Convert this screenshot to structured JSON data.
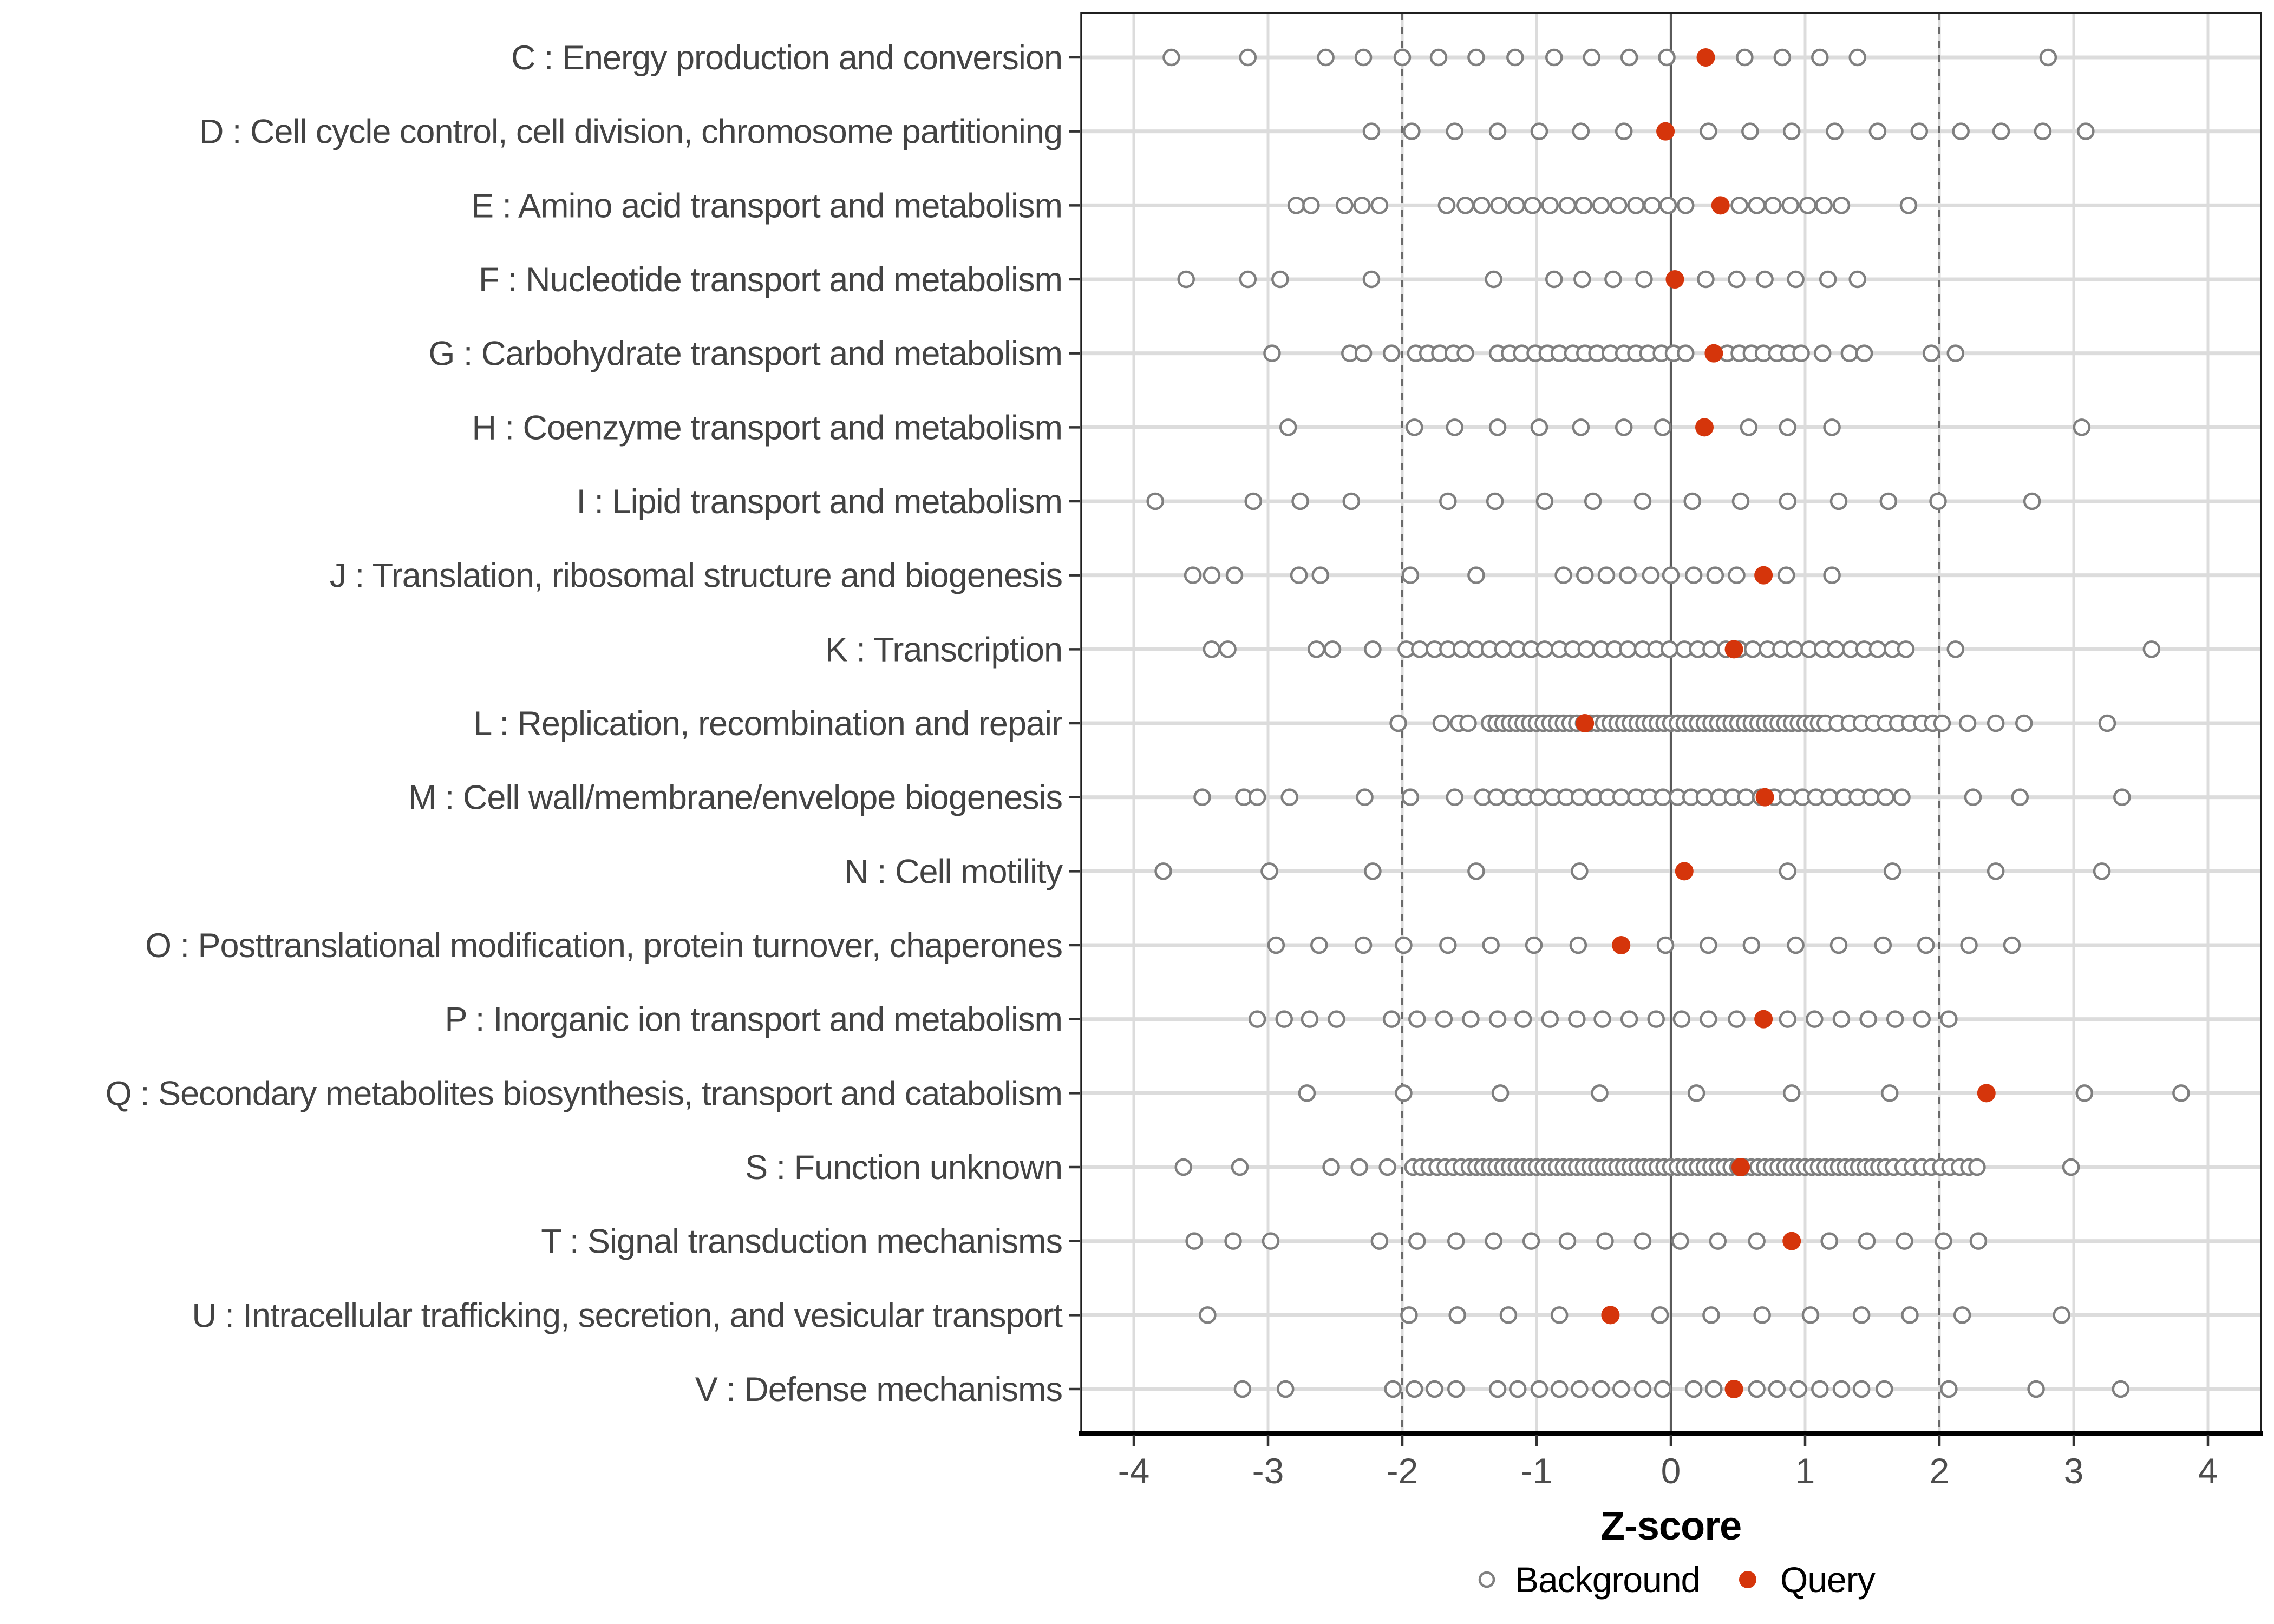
{
  "figure": {
    "background_color": "#FFFFFF"
  },
  "colors": {
    "query_point": "#D5350B",
    "background_point_stroke": "#7F7F7F",
    "background_point_fill": "#FFFFFF",
    "grid_line": "#DCDCDC",
    "row_band": "#DCDCDC",
    "dashed_reference_line": "#6A6A6A",
    "zero_line": "#5A5A5A",
    "panel_border": "#1F1F1F",
    "axis_line": "#000000",
    "tick_mark": "#333333",
    "tick_text": "#4D4D4D",
    "category_text": "#434343",
    "legend_text": "#000000"
  },
  "axis": {
    "x_label": "Z-score"
  },
  "legend": {
    "background_label": "Background",
    "query_label": "Query"
  },
  "chart_data": {
    "type": "scatter",
    "title": "",
    "xlabel": "Z-score",
    "ylabel": "",
    "xlim": [
      -4.4,
      4.4
    ],
    "x_ticks": [
      -4,
      -3,
      -2,
      -1,
      0,
      1,
      2,
      3,
      4
    ],
    "grid": "major vertical lines at integers; light horizontal band per category",
    "legend_position": "bottom",
    "legend_entries": [
      "Background",
      "Query"
    ],
    "reference_lines": {
      "solid_x": 0,
      "dashed_x": [
        -2,
        2
      ]
    },
    "rows": [
      {
        "label": "C : Energy production and conversion",
        "query": 0.26,
        "background": [
          -3.72,
          -3.15,
          -2.57,
          -2.29,
          -2.0,
          -1.73,
          -1.45,
          -1.16,
          -0.87,
          -0.59,
          -0.31,
          -0.03,
          0.55,
          0.83,
          1.11,
          1.39,
          2.81
        ]
      },
      {
        "label": "D : Cell cycle control, cell division, chromosome partitioning",
        "query": -0.04,
        "background": [
          -2.23,
          -1.93,
          -1.61,
          -1.29,
          -0.98,
          -0.67,
          -0.35,
          0.28,
          0.59,
          0.9,
          1.22,
          1.54,
          1.85,
          2.16,
          2.46,
          2.77,
          3.09
        ]
      },
      {
        "label": "E : Amino acid transport and metabolism",
        "query": 0.37,
        "background": [
          -2.79,
          -2.68,
          -2.43,
          -2.3,
          -2.17,
          -1.67,
          -1.53,
          -1.41,
          -1.28,
          -1.15,
          -1.03,
          -0.9,
          -0.77,
          -0.65,
          -0.52,
          -0.39,
          -0.26,
          -0.14,
          -0.02,
          0.11,
          0.51,
          0.64,
          0.76,
          0.89,
          1.02,
          1.14,
          1.27,
          1.77
        ]
      },
      {
        "label": "F : Nucleotide transport and metabolism",
        "query": 0.03,
        "background": [
          -3.61,
          -3.15,
          -2.91,
          -2.23,
          -1.32,
          -0.87,
          -0.66,
          -0.43,
          -0.2,
          0.26,
          0.49,
          0.7,
          0.93,
          1.17,
          1.39
        ]
      },
      {
        "label": "G : Carbohydrate transport and metabolism",
        "query": 0.32,
        "background": [
          -2.97,
          -2.39,
          -2.29,
          -2.08,
          -1.9,
          -1.81,
          -1.72,
          -1.62,
          -1.53,
          -1.29,
          -1.2,
          -1.11,
          -1.01,
          -0.92,
          -0.83,
          -0.73,
          -0.64,
          -0.55,
          -0.45,
          -0.35,
          -0.26,
          -0.17,
          -0.07,
          0.02,
          0.11,
          0.42,
          0.51,
          0.6,
          0.69,
          0.79,
          0.88,
          0.97,
          1.13,
          1.33,
          1.44,
          1.94,
          2.12
        ]
      },
      {
        "label": "H : Coenzyme transport and metabolism",
        "query": 0.25,
        "background": [
          -2.85,
          -1.91,
          -1.61,
          -1.29,
          -0.98,
          -0.67,
          -0.35,
          -0.06,
          0.58,
          0.87,
          1.2,
          3.06
        ]
      },
      {
        "label": "I : Lipid transport and metabolism",
        "query": null,
        "background": [
          -3.84,
          -3.11,
          -2.76,
          -2.38,
          -1.66,
          -1.31,
          -0.94,
          -0.58,
          -0.21,
          0.16,
          0.52,
          0.87,
          1.25,
          1.62,
          1.99,
          2.69
        ]
      },
      {
        "label": "J : Translation, ribosomal structure and biogenesis",
        "query": 0.69,
        "background": [
          -3.56,
          -3.42,
          -3.25,
          -2.77,
          -2.61,
          -1.94,
          -1.45,
          -0.8,
          -0.64,
          -0.48,
          -0.32,
          -0.15,
          0.0,
          0.17,
          0.33,
          0.49,
          0.86,
          1.2
        ]
      },
      {
        "label": "K : Transcription",
        "query": 0.47,
        "background": [
          -3.42,
          -3.3,
          -2.64,
          -2.52,
          -2.22,
          -1.97,
          -1.87,
          -1.76,
          -1.66,
          -1.56,
          -1.45,
          -1.35,
          -1.25,
          -1.14,
          -1.04,
          -0.94,
          -0.83,
          -0.73,
          -0.63,
          -0.52,
          -0.42,
          -0.32,
          -0.21,
          -0.11,
          -0.01,
          0.1,
          0.2,
          0.3,
          0.41,
          0.51,
          0.61,
          0.72,
          0.82,
          0.92,
          1.03,
          1.13,
          1.23,
          1.34,
          1.44,
          1.54,
          1.65,
          1.75,
          2.12,
          3.58
        ]
      },
      {
        "label": "L : Replication, recombination and repair",
        "query": -0.64,
        "background": [
          -2.03,
          -1.71,
          -1.58,
          -1.51,
          -1.35,
          -1.3,
          -1.25,
          -1.2,
          -1.15,
          -1.1,
          -1.05,
          -1.0,
          -0.95,
          -0.9,
          -0.85,
          -0.8,
          -0.75,
          -0.7,
          -0.65,
          -0.6,
          -0.55,
          -0.5,
          -0.45,
          -0.4,
          -0.35,
          -0.3,
          -0.25,
          -0.2,
          -0.15,
          -0.1,
          -0.05,
          0.0,
          0.05,
          0.1,
          0.15,
          0.2,
          0.25,
          0.3,
          0.35,
          0.4,
          0.45,
          0.5,
          0.55,
          0.6,
          0.65,
          0.7,
          0.75,
          0.8,
          0.85,
          0.9,
          0.95,
          1.0,
          1.05,
          1.1,
          1.15,
          1.24,
          1.33,
          1.42,
          1.51,
          1.6,
          1.69,
          1.78,
          1.87,
          1.95,
          2.02,
          2.21,
          2.42,
          2.63,
          3.25
        ]
      },
      {
        "label": "M : Cell wall/membrane/envelope biogenesis",
        "query": 0.7,
        "background": [
          -3.49,
          -3.18,
          -3.08,
          -2.84,
          -2.28,
          -1.94,
          -1.61,
          -1.4,
          -1.3,
          -1.19,
          -1.09,
          -0.99,
          -0.88,
          -0.78,
          -0.68,
          -0.57,
          -0.47,
          -0.37,
          -0.26,
          -0.16,
          -0.06,
          0.05,
          0.15,
          0.25,
          0.36,
          0.46,
          0.56,
          0.67,
          0.77,
          0.87,
          0.98,
          1.08,
          1.18,
          1.29,
          1.39,
          1.49,
          1.6,
          1.72,
          2.25,
          2.6,
          3.36
        ]
      },
      {
        "label": "N : Cell motility",
        "query": 0.1,
        "background": [
          -3.78,
          -2.99,
          -2.22,
          -1.45,
          -0.68,
          0.87,
          1.65,
          2.42,
          3.21
        ]
      },
      {
        "label": "O : Posttranslational modification, protein turnover, chaperones",
        "query": -0.37,
        "background": [
          -2.94,
          -2.62,
          -2.29,
          -1.99,
          -1.66,
          -1.34,
          -1.02,
          -0.69,
          -0.04,
          0.28,
          0.6,
          0.93,
          1.25,
          1.58,
          1.9,
          2.22,
          2.54
        ]
      },
      {
        "label": "P : Inorganic ion transport and metabolism",
        "query": 0.69,
        "background": [
          -3.08,
          -2.88,
          -2.69,
          -2.49,
          -2.08,
          -1.89,
          -1.69,
          -1.49,
          -1.29,
          -1.1,
          -0.9,
          -0.7,
          -0.51,
          -0.31,
          -0.11,
          0.08,
          0.28,
          0.49,
          0.87,
          1.07,
          1.27,
          1.47,
          1.67,
          1.87,
          2.07
        ]
      },
      {
        "label": "Q : Secondary metabolites biosynthesis, transport and catabolism",
        "query": 2.35,
        "background": [
          -2.71,
          -1.99,
          -1.27,
          -0.53,
          0.19,
          0.9,
          1.63,
          3.08,
          3.8
        ]
      },
      {
        "label": "S : Function unknown",
        "query": 0.52,
        "background": [
          -3.63,
          -3.21,
          -2.53,
          -2.32,
          -2.11,
          -1.92,
          -1.86,
          -1.8,
          -1.74,
          -1.68,
          -1.62,
          -1.56,
          -1.5,
          -1.45,
          -1.4,
          -1.35,
          -1.3,
          -1.25,
          -1.2,
          -1.15,
          -1.1,
          -1.05,
          -1.0,
          -0.95,
          -0.9,
          -0.85,
          -0.8,
          -0.75,
          -0.7,
          -0.65,
          -0.6,
          -0.55,
          -0.5,
          -0.45,
          -0.4,
          -0.35,
          -0.3,
          -0.25,
          -0.2,
          -0.15,
          -0.1,
          -0.05,
          0.0,
          0.05,
          0.1,
          0.15,
          0.2,
          0.25,
          0.3,
          0.35,
          0.4,
          0.45,
          0.5,
          0.55,
          0.6,
          0.65,
          0.7,
          0.75,
          0.8,
          0.85,
          0.9,
          0.95,
          1.0,
          1.05,
          1.1,
          1.15,
          1.2,
          1.25,
          1.3,
          1.35,
          1.4,
          1.45,
          1.5,
          1.55,
          1.6,
          1.66,
          1.73,
          1.8,
          1.87,
          1.94,
          2.01,
          2.08,
          2.15,
          2.22,
          2.28,
          2.98
        ]
      },
      {
        "label": "T : Signal transduction mechanisms",
        "query": 0.9,
        "background": [
          -3.55,
          -3.26,
          -2.98,
          -2.17,
          -1.89,
          -1.6,
          -1.32,
          -1.04,
          -0.77,
          -0.49,
          -0.21,
          0.07,
          0.35,
          0.64,
          1.18,
          1.46,
          1.74,
          2.03,
          2.29
        ]
      },
      {
        "label": "U : Intracellular trafficking, secretion, and vesicular transport",
        "query": -0.45,
        "background": [
          -3.45,
          -1.95,
          -1.59,
          -1.21,
          -0.83,
          -0.08,
          0.3,
          0.68,
          1.04,
          1.42,
          1.78,
          2.17,
          2.91
        ]
      },
      {
        "label": "V : Defense mechanisms",
        "query": 0.47,
        "background": [
          -3.19,
          -2.87,
          -2.07,
          -1.91,
          -1.76,
          -1.6,
          -1.29,
          -1.14,
          -0.98,
          -0.83,
          -0.68,
          -0.52,
          -0.37,
          -0.21,
          -0.06,
          0.17,
          0.32,
          0.64,
          0.79,
          0.95,
          1.11,
          1.27,
          1.42,
          1.59,
          2.07,
          2.72,
          3.35
        ]
      }
    ]
  }
}
